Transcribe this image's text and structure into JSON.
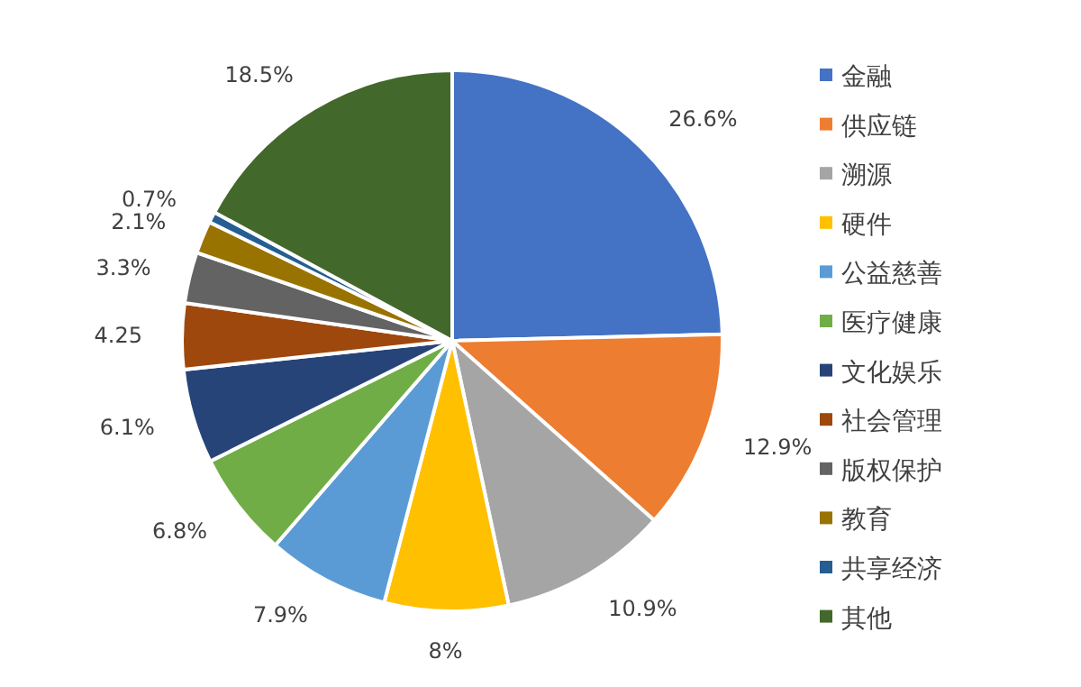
{
  "chart_data": {
    "type": "pie",
    "categories": [
      "金融",
      "供应链",
      "溯源",
      "硬件",
      "公益慈善",
      "医疗健康",
      "文化娱乐",
      "社会管理",
      "版权保护",
      "教育",
      "共享经济",
      "其他"
    ],
    "values": [
      26.6,
      12.9,
      10.9,
      8,
      7.9,
      6.8,
      6.1,
      4.25,
      3.3,
      2.1,
      0.7,
      18.5
    ],
    "colors": [
      "#4472c4",
      "#ed7d31",
      "#a5a5a5",
      "#ffc000",
      "#5b9bd5",
      "#70ad47",
      "#264478",
      "#9e480e",
      "#636363",
      "#997300",
      "#255e91",
      "#43682b"
    ],
    "value_labels": [
      "26.6%",
      "12.9%",
      "10.9%",
      "8%",
      "7.9%",
      "6.8%",
      "6.1%",
      "4.25",
      "3.3%",
      "2.1%",
      "0.7%",
      "18.5%"
    ],
    "legend": "right"
  }
}
